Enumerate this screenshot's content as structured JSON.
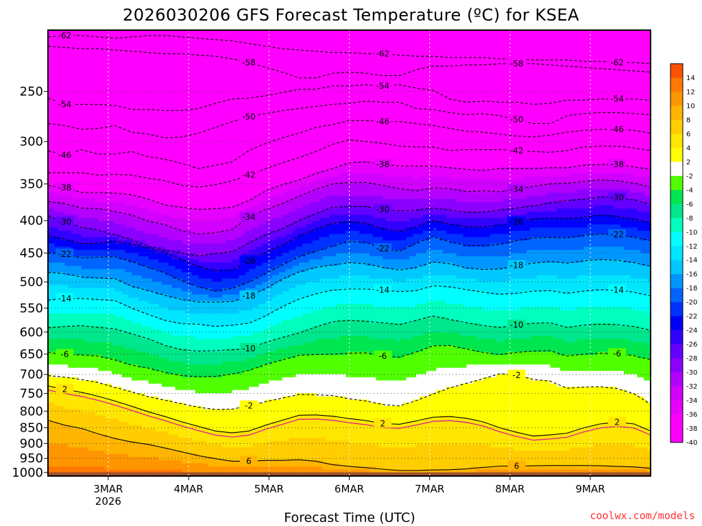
{
  "chart_data": {
    "type": "heatmap",
    "title": "2026030206 GFS Forecast Temperature (ºC) for KSEA",
    "xlabel": "Forecast Time (UTC)",
    "ylabel": "",
    "credit": "coolwx.com/models",
    "x_ticks": [
      {
        "label": "3MAR",
        "sublabel": "2026",
        "t": 18
      },
      {
        "label": "4MAR",
        "sublabel": "",
        "t": 42
      },
      {
        "label": "5MAR",
        "sublabel": "",
        "t": 66
      },
      {
        "label": "6MAR",
        "sublabel": "",
        "t": 90
      },
      {
        "label": "7MAR",
        "sublabel": "",
        "t": 114
      },
      {
        "label": "8MAR",
        "sublabel": "",
        "t": 138
      },
      {
        "label": "9MAR",
        "sublabel": "",
        "t": 162
      }
    ],
    "x_range_hours": [
      0,
      180
    ],
    "y_ticks": [
      250,
      300,
      350,
      400,
      450,
      500,
      550,
      600,
      650,
      700,
      750,
      800,
      850,
      900,
      950,
      1000
    ],
    "y_range_hPa": [
      200,
      1013
    ],
    "y_scale": "log",
    "surface_pressure_hPa": 1000,
    "contour_interval": 4,
    "contours": [
      {
        "level": -62,
        "p": [
          205,
          204,
          204,
          205,
          206,
          205,
          204,
          204,
          205,
          206,
          207,
          208,
          210,
          212,
          214,
          215,
          216,
          217,
          217,
          218,
          218,
          219,
          220,
          220,
          221,
          221,
          221,
          222,
          222,
          223,
          223,
          223,
          224,
          224,
          225,
          225,
          226
        ]
      },
      {
        "level": -58,
        "p": [
          212,
          213,
          214,
          214,
          215,
          216,
          217,
          218,
          218,
          219,
          220,
          222,
          225,
          229,
          233,
          238,
          238,
          234,
          233,
          234,
          236,
          236,
          231,
          228,
          228,
          227,
          227,
          226,
          226,
          226,
          227,
          228,
          229,
          230,
          231,
          232,
          233
        ]
      },
      {
        "level": -54,
        "p": [
          256,
          262,
          262,
          262,
          263,
          267,
          267,
          268,
          268,
          266,
          261,
          257,
          256,
          254,
          251,
          248,
          248,
          245,
          245,
          244,
          245,
          244,
          247,
          249,
          257,
          260,
          259,
          260,
          260,
          262,
          261,
          258,
          258,
          257,
          257,
          257,
          258
        ]
      },
      {
        "level": -50,
        "p": [
          281,
          283,
          287,
          286,
          283,
          290,
          292,
          296,
          295,
          291,
          285,
          279,
          274,
          271,
          268,
          266,
          264,
          262,
          261,
          259,
          260,
          260,
          266,
          267,
          270,
          272,
          271,
          273,
          277,
          281,
          281,
          273,
          271,
          270,
          270,
          271,
          272
        ]
      },
      {
        "level": -46,
        "p": [
          310,
          315,
          309,
          314,
          314,
          311,
          317,
          320,
          325,
          331,
          327,
          323,
          310,
          302,
          296,
          291,
          285,
          282,
          278,
          278,
          279,
          279,
          281,
          283,
          286,
          289,
          290,
          292,
          294,
          295,
          293,
          290,
          288,
          287,
          287,
          288,
          291
        ]
      },
      {
        "level": -42,
        "p": [
          336,
          336,
          336,
          339,
          338,
          339,
          343,
          346,
          352,
          354,
          351,
          346,
          339,
          331,
          324,
          318,
          311,
          303,
          298,
          300,
          302,
          305,
          306,
          306,
          310,
          309,
          309,
          309,
          310,
          311,
          312,
          310,
          306,
          305,
          305,
          307,
          310
        ]
      },
      {
        "level": -38,
        "p": [
          352,
          355,
          361,
          361,
          362,
          364,
          370,
          378,
          381,
          384,
          383,
          381,
          372,
          359,
          351,
          345,
          337,
          331,
          324,
          323,
          326,
          328,
          328,
          328,
          330,
          332,
          333,
          331,
          331,
          331,
          330,
          330,
          327,
          326,
          326,
          329,
          332
        ]
      },
      {
        "level": -34,
        "p": [
          373,
          376,
          382,
          383,
          387,
          392,
          401,
          406,
          415,
          420,
          418,
          413,
          395,
          384,
          376,
          366,
          357,
          350,
          348,
          348,
          352,
          356,
          359,
          355,
          356,
          360,
          359,
          360,
          357,
          353,
          350,
          349,
          347,
          345,
          346,
          349,
          354
        ]
      },
      {
        "level": -30,
        "p": [
          393,
          402,
          410,
          414,
          421,
          429,
          439,
          445,
          450,
          455,
          451,
          448,
          434,
          421,
          412,
          400,
          390,
          381,
          380,
          380,
          384,
          386,
          385,
          382,
          385,
          388,
          388,
          385,
          382,
          379,
          375,
          372,
          370,
          367,
          368,
          371,
          377
        ]
      },
      {
        "level": -26,
        "p": [
          422,
          428,
          435,
          434,
          431,
          436,
          442,
          449,
          461,
          473,
          480,
          479,
          463,
          449,
          437,
          423,
          412,
          404,
          402,
          404,
          412,
          416,
          409,
          400,
          405,
          409,
          409,
          407,
          402,
          398,
          396,
          397,
          395,
          392,
          394,
          398,
          403
        ]
      },
      {
        "level": -22,
        "p": [
          450,
          452,
          458,
          457,
          456,
          464,
          474,
          484,
          498,
          509,
          517,
          512,
          500,
          485,
          470,
          456,
          447,
          439,
          431,
          433,
          443,
          447,
          434,
          424,
          432,
          438,
          438,
          436,
          430,
          426,
          425,
          426,
          422,
          420,
          421,
          425,
          430
        ]
      },
      {
        "level": -18,
        "p": [
          483,
          485,
          491,
          493,
          494,
          508,
          516,
          525,
          533,
          538,
          538,
          537,
          526,
          512,
          495,
          482,
          474,
          470,
          466,
          468,
          474,
          479,
          474,
          465,
          468,
          475,
          478,
          477,
          471,
          467,
          464,
          467,
          463,
          461,
          462,
          466,
          472
        ]
      },
      {
        "level": -14,
        "p": [
          534,
          531,
          531,
          533,
          535,
          550,
          563,
          575,
          582,
          583,
          588,
          585,
          581,
          566,
          547,
          532,
          522,
          515,
          513,
          513,
          515,
          518,
          516,
          507,
          509,
          514,
          519,
          523,
          521,
          517,
          516,
          521,
          517,
          514,
          515,
          519,
          526
        ]
      },
      {
        "level": -10,
        "p": [
          591,
          588,
          586,
          590,
          593,
          604,
          615,
          630,
          640,
          643,
          642,
          640,
          637,
          623,
          612,
          602,
          589,
          578,
          575,
          577,
          580,
          584,
          575,
          566,
          573,
          580,
          586,
          590,
          585,
          581,
          580,
          590,
          585,
          583,
          584,
          588,
          596
        ]
      },
      {
        "level": -6,
        "p": [
          646,
          651,
          652,
          655,
          664,
          677,
          684,
          695,
          703,
          706,
          705,
          699,
          690,
          675,
          664,
          653,
          651,
          650,
          648,
          647,
          655,
          657,
          645,
          631,
          630,
          638,
          646,
          651,
          646,
          643,
          642,
          655,
          650,
          648,
          649,
          654,
          663
        ]
      },
      {
        "level": -2,
        "p": [
          703,
          707,
          713,
          721,
          734,
          746,
          759,
          769,
          779,
          789,
          795,
          794,
          785,
          773,
          763,
          753,
          754,
          756,
          765,
          771,
          781,
          785,
          770,
          752,
          735,
          723,
          711,
          698,
          702,
          713,
          717,
          736,
          733,
          732,
          737,
          751,
          780
        ]
      },
      {
        "level": 2,
        "p": [
          730,
          739,
          747,
          758,
          771,
          786,
          802,
          816,
          832,
          846,
          860,
          866,
          860,
          842,
          827,
          812,
          811,
          815,
          822,
          828,
          837,
          839,
          829,
          818,
          816,
          821,
          832,
          850,
          864,
          876,
          872,
          867,
          850,
          838,
          833,
          838,
          860
        ]
      },
      {
        "level": 6,
        "p": [
          827,
          842,
          852,
          869,
          884,
          895,
          903,
          915,
          928,
          941,
          951,
          960,
          960,
          957,
          957,
          955,
          960,
          972,
          978,
          983,
          988,
          993,
          993,
          991,
          990,
          987,
          982,
          977,
          977,
          976,
          975,
          975,
          975,
          976,
          978,
          980,
          985
        ]
      }
    ],
    "surface_ground": "1000-1013 hPa",
    "colorbar": {
      "levels": [
        -40,
        -38,
        -36,
        -34,
        -32,
        -30,
        -28,
        -26,
        -24,
        -22,
        -20,
        -18,
        -16,
        -14,
        -12,
        -10,
        -8,
        -6,
        -4,
        -2,
        2,
        4,
        6,
        8,
        10,
        12,
        14
      ],
      "labels": [
        "14",
        "12",
        "10",
        "8",
        "6",
        "4",
        "2",
        "-2",
        "-4",
        "-6",
        "-8",
        "-10",
        "-12",
        "-14",
        "-16",
        "-18",
        "-20",
        "-22",
        "-24",
        "-26",
        "-28",
        "-30",
        "-32",
        "-34",
        "-36",
        "-38",
        "-40"
      ],
      "colors_top_to_bottom": [
        "#ff5000",
        "#ff7800",
        "#ff9600",
        "#ffb400",
        "#ffcd00",
        "#ffe600",
        "#ffff00",
        "#ffffff",
        "#50ff00",
        "#00e650",
        "#00e68c",
        "#00ffbe",
        "#00ffff",
        "#00e6ff",
        "#00c8ff",
        "#0096ff",
        "#0064ff",
        "#0032ff",
        "#0000ff",
        "#3200ff",
        "#6400ff",
        "#8c00ff",
        "#b400ff",
        "#d200ff",
        "#e600ff",
        "#ff00ff",
        "#ff00ff"
      ]
    },
    "grid": true,
    "freezing_line_color": "#e0208c",
    "ground_color": "#a0522d"
  }
}
